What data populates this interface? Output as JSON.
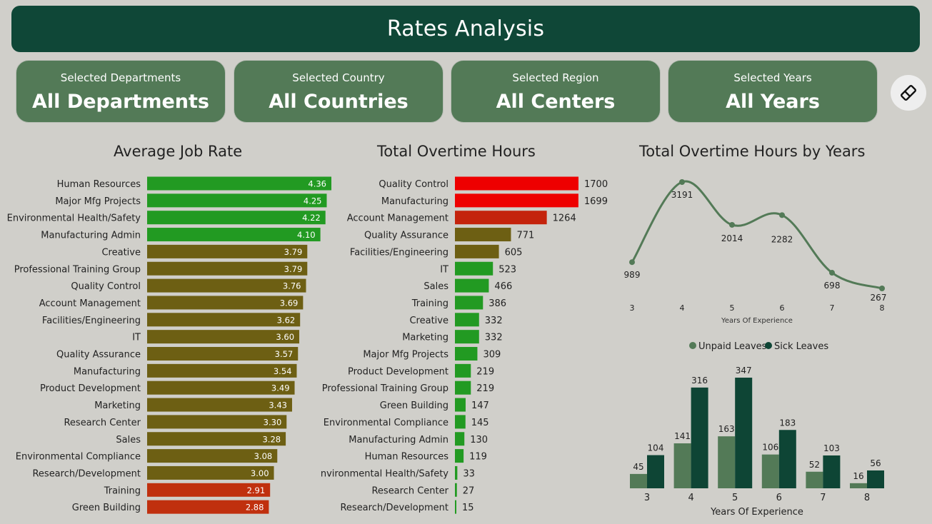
{
  "header": {
    "title": "Rates Analysis"
  },
  "filters": [
    {
      "label": "Selected Departments",
      "value": "All Departments"
    },
    {
      "label": "Selected Country",
      "value": "All Countries"
    },
    {
      "label": "Selected Region",
      "value": "All Centers"
    },
    {
      "label": "Selected Years",
      "value": "All Years"
    }
  ],
  "clear_button": {
    "icon": "eraser-icon"
  },
  "colors": {
    "green": "#229a22",
    "olive": "#6d5f13",
    "red_job": "#c0300e",
    "red_bright": "#ee0000",
    "red_dark": "#c4230c",
    "line": "#537a57",
    "unpaid": "#537a57",
    "sick": "#0e4535",
    "header": "#0f4737"
  },
  "chart_data": [
    {
      "type": "bar",
      "orientation": "horizontal",
      "title": "Average Job Rate",
      "categories": [
        "Human Resources",
        "Major Mfg Projects",
        "Environmental Health/Safety",
        "Manufacturing Admin",
        "Creative",
        "Professional Training Group",
        "Quality Control",
        "Account Management",
        "Facilities/Engineering",
        "IT",
        "Quality Assurance",
        "Manufacturing",
        "Product Development",
        "Marketing",
        "Research Center",
        "Sales",
        "Environmental Compliance",
        "Research/Development",
        "Training",
        "Green Building"
      ],
      "values": [
        4.36,
        4.25,
        4.22,
        4.1,
        3.79,
        3.79,
        3.76,
        3.69,
        3.62,
        3.6,
        3.57,
        3.54,
        3.49,
        3.43,
        3.3,
        3.28,
        3.08,
        3.0,
        2.91,
        2.88
      ],
      "labels": [
        "4.36",
        "4.25",
        "4.22",
        "4.10",
        "3.79",
        "3.79",
        "3.76",
        "3.69",
        "3.62",
        "3.60",
        "3.57",
        "3.54",
        "3.49",
        "3.43",
        "3.30",
        "3.28",
        "3.08",
        "3.00",
        "2.91",
        "2.88"
      ],
      "colors": [
        "green",
        "green",
        "green",
        "green",
        "olive",
        "olive",
        "olive",
        "olive",
        "olive",
        "olive",
        "olive",
        "olive",
        "olive",
        "olive",
        "olive",
        "olive",
        "olive",
        "olive",
        "red_job",
        "red_job"
      ]
    },
    {
      "type": "bar",
      "orientation": "horizontal",
      "title": "Total Overtime Hours",
      "categories": [
        "Quality Control",
        "Manufacturing",
        "Account Management",
        "Quality Assurance",
        "Facilities/Engineering",
        "IT",
        "Sales",
        "Training",
        "Creative",
        "Marketing",
        "Major Mfg Projects",
        "Product Development",
        "Professional Training Group",
        "Green Building",
        "Environmental Compliance",
        "Manufacturing Admin",
        "Human Resources",
        "Environmental Health/Safety",
        "Research Center",
        "Research/Development"
      ],
      "values": [
        1700,
        1699,
        1264,
        771,
        605,
        523,
        466,
        386,
        332,
        332,
        309,
        219,
        219,
        147,
        145,
        130,
        119,
        33,
        27,
        15
      ],
      "colors": [
        "red_bright",
        "red_bright",
        "red_dark",
        "olive",
        "olive",
        "green",
        "green",
        "green",
        "green",
        "green",
        "green",
        "green",
        "green",
        "green",
        "green",
        "green",
        "green",
        "green",
        "green",
        "green"
      ]
    },
    {
      "type": "line",
      "title": "Total Overtime Hours by Years",
      "xlabel": "Years Of Experience",
      "x": [
        3,
        4,
        5,
        6,
        7,
        8
      ],
      "values": [
        989,
        3191,
        2014,
        2282,
        698,
        267
      ]
    },
    {
      "type": "bar",
      "xlabel": "Years Of Experience",
      "legend_position": "top",
      "categories": [
        3,
        4,
        5,
        6,
        7,
        8
      ],
      "series": [
        {
          "name": "Unpaid Leaves",
          "color": "unpaid",
          "values": [
            45,
            141,
            163,
            106,
            52,
            16
          ]
        },
        {
          "name": "Sick Leaves",
          "color": "sick",
          "values": [
            104,
            316,
            347,
            183,
            103,
            56
          ]
        }
      ]
    }
  ]
}
